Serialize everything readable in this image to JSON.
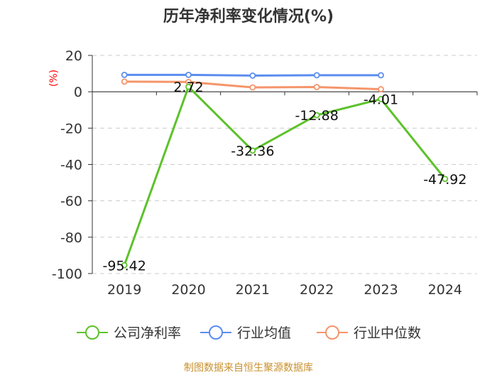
{
  "chart_data": {
    "type": "line",
    "title": "历年净利率变化情况(%)",
    "ylabel": "(%)",
    "xlabel": "",
    "categories": [
      "2019",
      "2020",
      "2021",
      "2022",
      "2023",
      "2024"
    ],
    "ylim": [
      -100,
      20
    ],
    "yticks": [
      20,
      0,
      -20,
      -40,
      -60,
      -80,
      -100
    ],
    "grid": true,
    "legend_position": "bottom",
    "series": [
      {
        "name": "公司净利率",
        "color": "#5cc22a",
        "values": [
          -95.42,
          2.72,
          -32.36,
          -12.88,
          -4.01,
          -47.92
        ],
        "labels": [
          "-95.42",
          "2.72",
          "-32.36",
          "-12.88",
          "-4.01",
          "-47.92"
        ]
      },
      {
        "name": "行业均值",
        "color": "#5b8def",
        "values": [
          9.3,
          9.3,
          8.9,
          9.1,
          9.1,
          null
        ]
      },
      {
        "name": "行业中位数",
        "color": "#f5956a",
        "values": [
          5.6,
          5.4,
          2.4,
          2.6,
          1.4,
          null
        ]
      }
    ],
    "source": "制图数据来自恒生聚源数据库"
  }
}
